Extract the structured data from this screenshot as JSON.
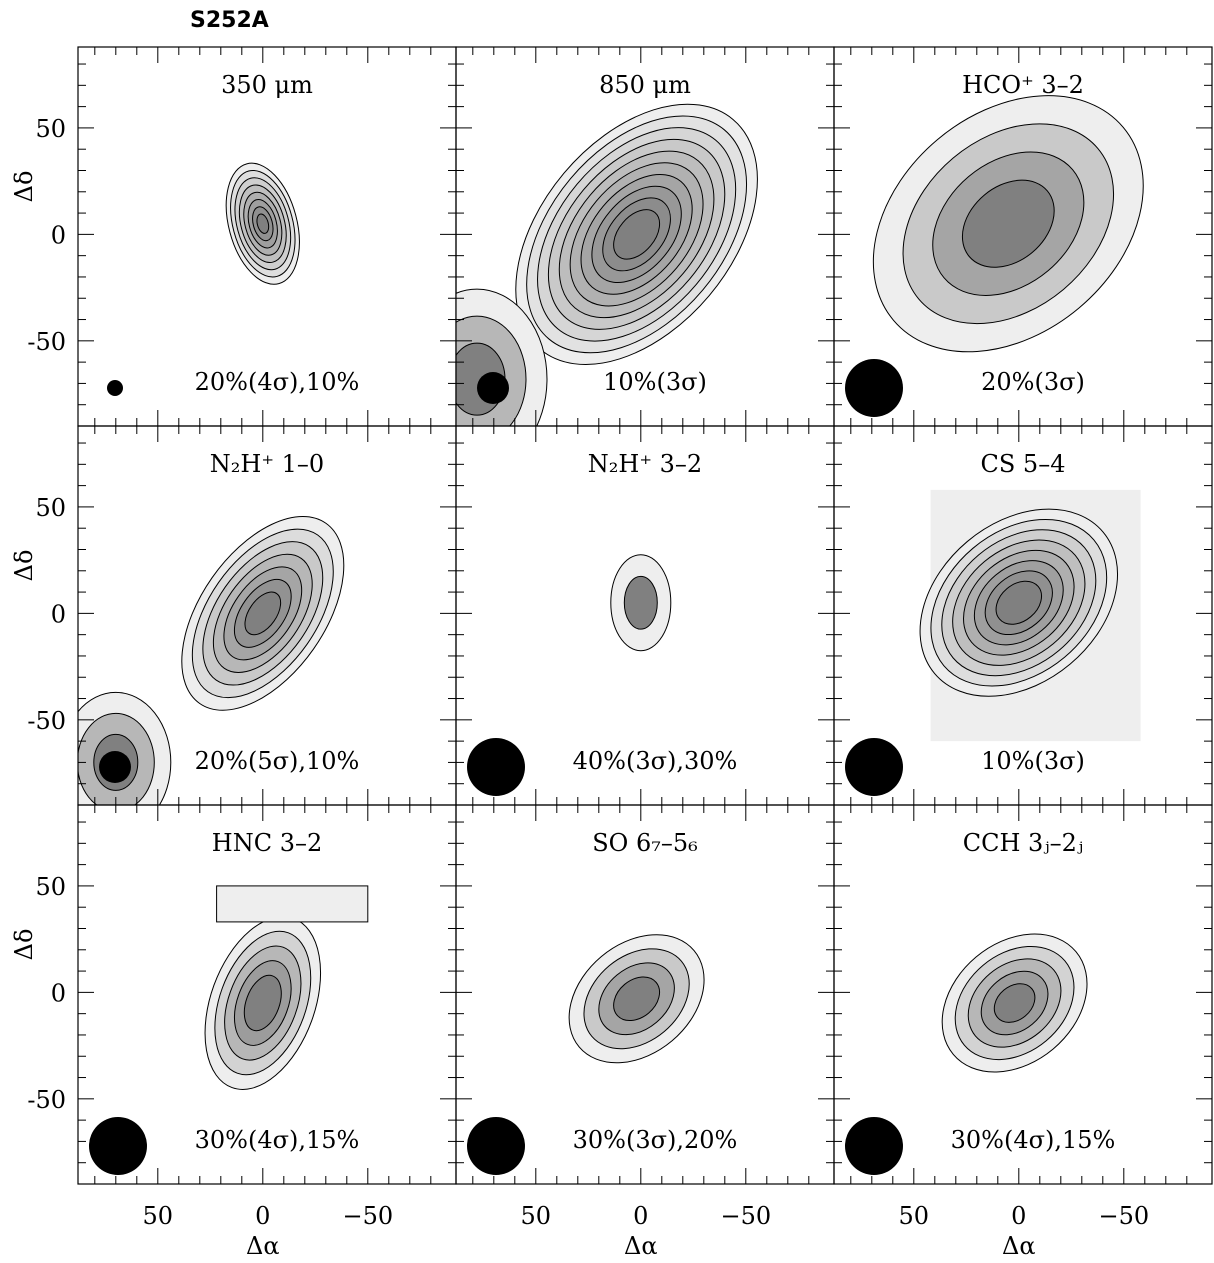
{
  "figure_title": "S252A",
  "axes": {
    "xlabel": "Δα",
    "ylabel": "Δδ",
    "x_ticklabels": [
      "50",
      "0",
      "−50"
    ],
    "y_ticklabels": [
      "50",
      "0",
      "-50"
    ],
    "xlim": [
      88,
      -92
    ],
    "ylim": [
      -90,
      88
    ]
  },
  "panels": [
    {
      "id": "350um",
      "label": "350 μm",
      "levels": "20%(4σ),10%",
      "beam_size": "small"
    },
    {
      "id": "850um",
      "label": "850 μm",
      "levels": "10%(3σ)",
      "beam_size": "small"
    },
    {
      "id": "hco",
      "label": "HCO⁺ 3–2",
      "levels": "20%(3σ)",
      "beam_size": "large"
    },
    {
      "id": "n2h10",
      "label": "N₂H⁺ 1–0",
      "levels": "20%(5σ),10%",
      "beam_size": "small"
    },
    {
      "id": "n2h32",
      "label": "N₂H⁺ 3–2",
      "levels": "40%(3σ),30%",
      "beam_size": "large"
    },
    {
      "id": "cs54",
      "label": "CS 5–4",
      "levels": "10%(3σ)",
      "beam_size": "large"
    },
    {
      "id": "hnc32",
      "label": "HNC 3–2",
      "levels": "30%(4σ),15%",
      "beam_size": "large"
    },
    {
      "id": "so",
      "label": "SO 6₇–5₆",
      "levels": "30%(3σ),20%",
      "beam_size": "large"
    },
    {
      "id": "cch",
      "label": "CCH 3ⱼ–2ⱼ",
      "levels": "30%(4σ),15%",
      "beam_size": "large"
    }
  ],
  "colors": {
    "frame": "#000000",
    "fill_light": "#eeeeee",
    "fill_dark": "#7a7a7a",
    "beam": "#000000"
  }
}
